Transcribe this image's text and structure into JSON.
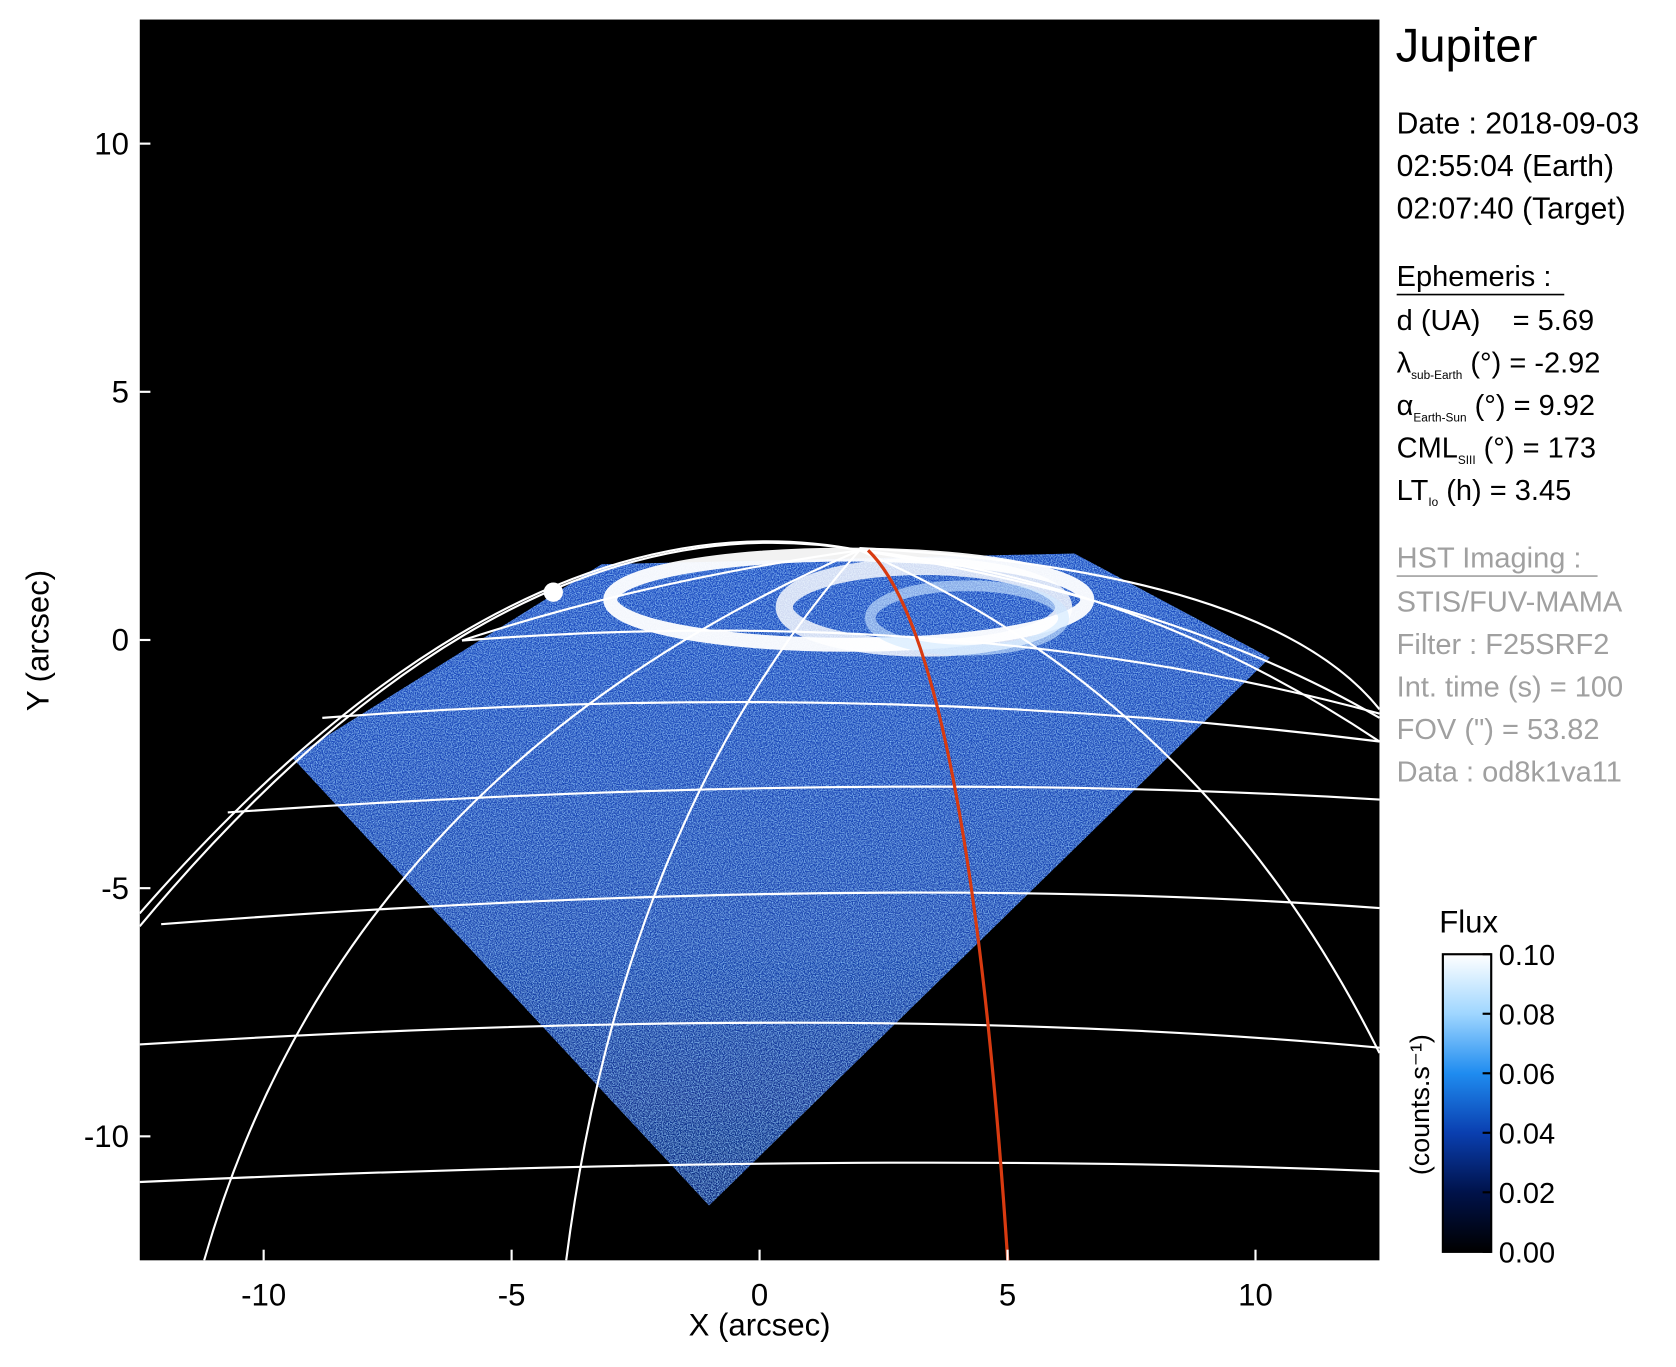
{
  "chart_data": {
    "type": "image",
    "x_label": "X (arcsec)",
    "y_label": "Y (arcsec)",
    "xlim": [
      -12.5,
      12.5
    ],
    "ylim": [
      -12.5,
      12.5
    ],
    "xticks": [
      -10,
      -5,
      0,
      5,
      10
    ],
    "yticks": [
      -10,
      -5,
      0,
      5,
      10
    ],
    "colorbar": {
      "label": "Flux",
      "unit": "(counts.s⁻¹)",
      "clim": [
        0,
        0.1
      ],
      "ticks": [
        {
          "value": 0,
          "label": "0.00"
        },
        {
          "value": 0.02,
          "label": "0.02"
        },
        {
          "value": 0.04,
          "label": "0.04"
        },
        {
          "value": 0.06,
          "label": "0.06"
        },
        {
          "value": 0.08,
          "label": "0.08"
        },
        {
          "value": 0.1,
          "label": "0.10"
        }
      ],
      "colors": [
        "#000000",
        "#00124a",
        "#0a3fb0",
        "#1f8cf0",
        "#9fd6ff",
        "#ffffff"
      ]
    }
  },
  "panel": {
    "title": "Jupiter",
    "date": [
      "Date : 2018-09-03",
      "02:55:04 (Earth)",
      "02:07:40 (Target)"
    ],
    "ephemeris": {
      "title": "Ephemeris :",
      "items": [
        {
          "symbol": "d (UA)    = 5.69"
        },
        {
          "symbol": "λ",
          "sub": "sub-Earth",
          "text": " (°) = -2.92"
        },
        {
          "symbol": "α",
          "sub": "Earth-Sun",
          "text": " (°) = 9.92"
        },
        {
          "symbol": "CML",
          "sub": "SIII",
          "text": " (°) = 173"
        },
        {
          "symbol": "LT",
          "sub": "Io",
          "text": " (h) = 3.45"
        }
      ]
    },
    "imaging": {
      "title": "HST Imaging :",
      "items": [
        "STIS/FUV-MAMA",
        "Filter : F25SRF2",
        "Int. time (s) = 100",
        "FOV (\") = 53.82",
        "Data : od8k1va11"
      ]
    }
  }
}
